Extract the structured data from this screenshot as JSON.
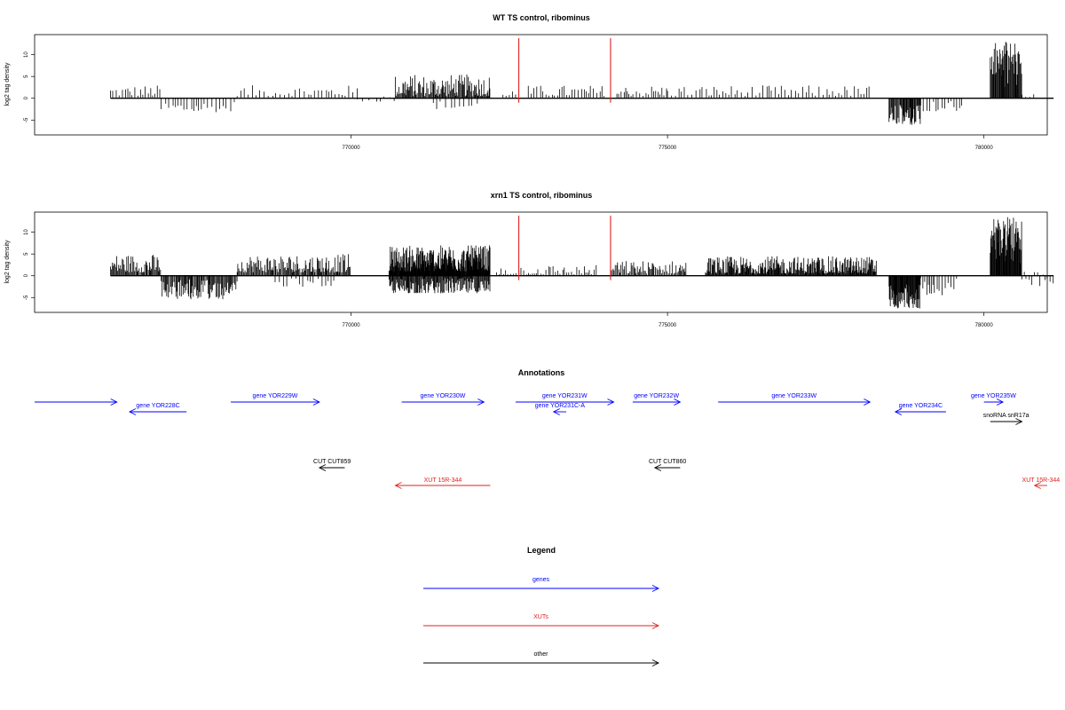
{
  "chart_data": [
    {
      "type": "bar",
      "title": "WT TS control, ribominus",
      "ylabel": "log2 tag density",
      "y_ticks": [
        "10",
        "5",
        "0",
        "-5"
      ],
      "x_ticks": [
        "770000",
        "775000",
        "780000"
      ],
      "xlim": [
        765000,
        781000
      ],
      "ylim": [
        -8,
        14
      ],
      "baseline": [
        766200,
        781100
      ],
      "markers": [
        {
          "x": 772650,
          "color": "#e02020"
        },
        {
          "x": 774100,
          "color": "#e02020"
        }
      ],
      "segments": [
        {
          "from": 766200,
          "to": 767000,
          "min": 0.5,
          "max": 3.0,
          "step": 40
        },
        {
          "from": 767000,
          "to": 768200,
          "min": -3.2,
          "max": -0.5,
          "step": 55
        },
        {
          "from": 768200,
          "to": 770100,
          "min": 0.5,
          "max": 3.0,
          "step": 55
        },
        {
          "from": 770100,
          "to": 770700,
          "min": -0.8,
          "max": 1.0,
          "step": 80
        },
        {
          "from": 770700,
          "to": 772200,
          "min": 0.5,
          "max": 5.5,
          "step": 13
        },
        {
          "from": 771300,
          "to": 772000,
          "min": -2.5,
          "max": -0.5,
          "step": 70
        },
        {
          "from": 772400,
          "to": 772600,
          "min": 0.5,
          "max": 2.0,
          "step": 50
        },
        {
          "from": 772800,
          "to": 774000,
          "min": 0.5,
          "max": 3.0,
          "step": 45
        },
        {
          "from": 774200,
          "to": 775000,
          "min": 0.5,
          "max": 3.0,
          "step": 40
        },
        {
          "from": 775000,
          "to": 778200,
          "min": 0.5,
          "max": 3.0,
          "step": 50
        },
        {
          "from": 778500,
          "to": 779000,
          "min": -6.5,
          "max": -1.5,
          "step": 12
        },
        {
          "from": 779000,
          "to": 779700,
          "min": -3.0,
          "max": -0.5,
          "step": 50
        },
        {
          "from": 780100,
          "to": 780600,
          "min": 2.0,
          "max": 13.0,
          "step": 10
        },
        {
          "from": 780600,
          "to": 780800,
          "min": 0.3,
          "max": 1.0,
          "step": 60
        }
      ]
    },
    {
      "type": "bar",
      "title": "xrn1 TS control, ribominus",
      "ylabel": "log2 tag density",
      "y_ticks": [
        "10",
        "5",
        "0",
        "-5"
      ],
      "x_ticks": [
        "770000",
        "775000",
        "780000"
      ],
      "xlim": [
        765000,
        781000
      ],
      "ylim": [
        -8,
        14
      ],
      "baseline": [
        766200,
        781100
      ],
      "markers": [
        {
          "x": 772650,
          "color": "#e02020"
        },
        {
          "x": 774100,
          "color": "#e02020"
        }
      ],
      "segments": [
        {
          "from": 766200,
          "to": 767000,
          "min": 0.8,
          "max": 5.0,
          "step": 14
        },
        {
          "from": 767000,
          "to": 768200,
          "min": -5.5,
          "max": -0.8,
          "step": 14
        },
        {
          "from": 768200,
          "to": 770000,
          "min": 0.8,
          "max": 5.0,
          "step": 14
        },
        {
          "from": 768800,
          "to": 769800,
          "min": -2.5,
          "max": -0.5,
          "step": 60
        },
        {
          "from": 770600,
          "to": 772200,
          "min": 1.0,
          "max": 7.0,
          "step": 6
        },
        {
          "from": 770600,
          "to": 772200,
          "min": -4.0,
          "max": -0.5,
          "step": 11
        },
        {
          "from": 772300,
          "to": 773900,
          "min": 0.3,
          "max": 2.5,
          "step": 35
        },
        {
          "from": 774100,
          "to": 775300,
          "min": 0.5,
          "max": 3.5,
          "step": 18
        },
        {
          "from": 775600,
          "to": 778300,
          "min": 0.5,
          "max": 4.5,
          "step": 10
        },
        {
          "from": 778500,
          "to": 779000,
          "min": -7.5,
          "max": -1.5,
          "step": 8
        },
        {
          "from": 779000,
          "to": 779600,
          "min": -4.5,
          "max": -0.5,
          "step": 35
        },
        {
          "from": 780100,
          "to": 780600,
          "min": 2.0,
          "max": 13.5,
          "step": 8
        },
        {
          "from": 780600,
          "to": 781100,
          "min": -2.5,
          "max": 1.0,
          "step": 40
        }
      ]
    }
  ],
  "annotations": {
    "title": "Annotations",
    "xlim": [
      765000,
      781000
    ],
    "features": [
      {
        "label": "",
        "from": 765000,
        "to": 766300,
        "row": 0,
        "strand": "+",
        "color": "#0000ff"
      },
      {
        "label": "gene YOR228C",
        "from": 766500,
        "to": 767400,
        "row": 1,
        "strand": "-",
        "color": "#0000ff"
      },
      {
        "label": "gene YOR229W",
        "from": 768100,
        "to": 769500,
        "row": 0,
        "strand": "+",
        "color": "#0000ff"
      },
      {
        "label": "gene YOR230W",
        "from": 770800,
        "to": 772100,
        "row": 0,
        "strand": "+",
        "color": "#0000ff"
      },
      {
        "label": "gene YOR231W",
        "from": 772600,
        "to": 774150,
        "row": 0,
        "strand": "+",
        "color": "#0000ff"
      },
      {
        "label": "gene YOR231C-A",
        "from": 773200,
        "to": 773400,
        "row": 1,
        "strand": "-",
        "color": "#0000ff"
      },
      {
        "label": "gene YOR232W",
        "from": 774450,
        "to": 775200,
        "row": 0,
        "strand": "+",
        "color": "#0000ff"
      },
      {
        "label": "gene YOR233W",
        "from": 775800,
        "to": 778200,
        "row": 0,
        "strand": "+",
        "color": "#0000ff"
      },
      {
        "label": "gene YOR234C",
        "from": 778600,
        "to": 779400,
        "row": 1,
        "strand": "-",
        "color": "#0000ff"
      },
      {
        "label": "gene YOR235W",
        "from": 780000,
        "to": 780300,
        "row": 0,
        "strand": "+",
        "color": "#0000ff"
      },
      {
        "label": "snoRNA snR17a",
        "from": 780100,
        "to": 780600,
        "row": 2,
        "strand": "+",
        "color": "#000000"
      },
      {
        "label": "CUT CUT859",
        "from": 769500,
        "to": 769900,
        "row": 3,
        "strand": "-",
        "color": "#000000"
      },
      {
        "label": "CUT CUT860",
        "from": 774800,
        "to": 775200,
        "row": 3,
        "strand": "-",
        "color": "#000000"
      },
      {
        "label": "XUT 15R-344",
        "from": 770700,
        "to": 772200,
        "row": 4,
        "strand": "-",
        "color": "#e02020"
      },
      {
        "label": "XUT 15R-344",
        "from": 780800,
        "to": 781000,
        "row": 4,
        "strand": "-",
        "color": "#e02020"
      }
    ]
  },
  "legend": {
    "title": "Legend",
    "items": [
      {
        "label": "genes",
        "color": "#0000ff"
      },
      {
        "label": "XUTs",
        "color": "#e02020"
      },
      {
        "label": "other",
        "color": "#000000"
      }
    ]
  }
}
